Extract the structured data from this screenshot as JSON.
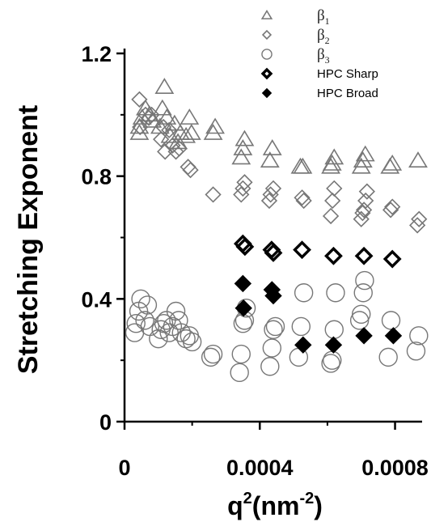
{
  "chart_data": {
    "type": "scatter",
    "xlabel": {
      "base": "q",
      "sup1": "2",
      "mid": "(nm",
      "sup2": "-2",
      "end": ")"
    },
    "ylabel": "Stretching Exponent",
    "xlim": [
      0,
      0.00088
    ],
    "ylim": [
      0,
      1.2
    ],
    "x_ticks": [
      0,
      0.0004,
      0.0008
    ],
    "x_tick_labels": [
      "0",
      "0.0004",
      "0.0008"
    ],
    "y_ticks": [
      0,
      0.4,
      0.8,
      1.2
    ],
    "y_tick_labels": [
      "0",
      "0.4",
      "0.8",
      "1.2"
    ],
    "grid": false,
    "legend_position": "top-right",
    "series": [
      {
        "name": "β1",
        "label_base": "β",
        "label_sub": "1",
        "marker": "triangle-open",
        "color": "#777777",
        "points": [
          [
            4.4e-05,
            0.94
          ],
          [
            4.4e-05,
            0.96
          ],
          [
            5.2e-05,
            0.99
          ],
          [
            6.2e-05,
            1.02
          ],
          [
            7.4e-05,
            1.0
          ],
          [
            8.2e-05,
            0.98
          ],
          [
            0.000105,
            0.96
          ],
          [
            0.000112,
            1.02
          ],
          [
            0.000118,
            1.09
          ],
          [
            0.000125,
            0.99
          ],
          [
            0.000135,
            0.93
          ],
          [
            0.000148,
            0.97
          ],
          [
            0.000158,
            0.91
          ],
          [
            0.000165,
            0.94
          ],
          [
            0.000182,
            0.93
          ],
          [
            0.000192,
            0.99
          ],
          [
            0.000198,
            0.94
          ],
          [
            0.000262,
            0.94
          ],
          [
            0.000268,
            0.96
          ],
          [
            0.000345,
            0.86
          ],
          [
            0.00035,
            0.89
          ],
          [
            0.000355,
            0.92
          ],
          [
            0.00043,
            0.85
          ],
          [
            0.000437,
            0.89
          ],
          [
            0.00052,
            0.83
          ],
          [
            0.000527,
            0.83
          ],
          [
            0.00061,
            0.83
          ],
          [
            0.000614,
            0.84
          ],
          [
            0.00062,
            0.86
          ],
          [
            0.0007,
            0.83
          ],
          [
            0.000705,
            0.85
          ],
          [
            0.000712,
            0.87
          ],
          [
            0.000785,
            0.83
          ],
          [
            0.000792,
            0.84
          ],
          [
            0.000868,
            0.85
          ]
        ]
      },
      {
        "name": "β2",
        "label_base": "β",
        "label_sub": "2",
        "marker": "diamond-open",
        "color": "#777777",
        "points": [
          [
            4.4e-05,
            1.05
          ],
          [
            4.6e-05,
            0.96
          ],
          [
            6.2e-05,
            1.0
          ],
          [
            7.2e-05,
            0.99
          ],
          [
            8e-05,
            1.0
          ],
          [
            0.000108,
            0.92
          ],
          [
            0.000115,
            0.96
          ],
          [
            0.00012,
            0.88
          ],
          [
            0.000132,
            0.95
          ],
          [
            0.000142,
            0.9
          ],
          [
            0.000152,
            0.88
          ],
          [
            0.000162,
            0.89
          ],
          [
            0.000188,
            0.83
          ],
          [
            0.000195,
            0.82
          ],
          [
            0.000262,
            0.74
          ],
          [
            0.000345,
            0.74
          ],
          [
            0.00035,
            0.76
          ],
          [
            0.000355,
            0.78
          ],
          [
            0.000428,
            0.72
          ],
          [
            0.000432,
            0.74
          ],
          [
            0.00044,
            0.76
          ],
          [
            0.000525,
            0.73
          ],
          [
            0.00053,
            0.72
          ],
          [
            0.00061,
            0.67
          ],
          [
            0.000615,
            0.72
          ],
          [
            0.00062,
            0.76
          ],
          [
            0.0007,
            0.66
          ],
          [
            0.000704,
            0.68
          ],
          [
            0.000708,
            0.69
          ],
          [
            0.000713,
            0.72
          ],
          [
            0.000717,
            0.75
          ],
          [
            0.000787,
            0.69
          ],
          [
            0.000792,
            0.7
          ],
          [
            0.000866,
            0.64
          ],
          [
            0.000871,
            0.66
          ]
        ]
      },
      {
        "name": "β3",
        "label_base": "β",
        "label_sub": "3",
        "marker": "circle-open",
        "color": "#777777",
        "points": [
          [
            3e-05,
            0.29
          ],
          [
            3.4e-05,
            0.32
          ],
          [
            4.2e-05,
            0.36
          ],
          [
            4.8e-05,
            0.4
          ],
          [
            6e-05,
            0.33
          ],
          [
            6.8e-05,
            0.38
          ],
          [
            7.5e-05,
            0.31
          ],
          [
            0.0001,
            0.27
          ],
          [
            0.000108,
            0.3
          ],
          [
            0.000116,
            0.32
          ],
          [
            0.000124,
            0.33
          ],
          [
            0.000132,
            0.29
          ],
          [
            0.000142,
            0.31
          ],
          [
            0.000152,
            0.36
          ],
          [
            0.00016,
            0.33
          ],
          [
            0.000168,
            0.29
          ],
          [
            0.000182,
            0.27
          ],
          [
            0.000192,
            0.28
          ],
          [
            0.0002,
            0.26
          ],
          [
            0.000255,
            0.21
          ],
          [
            0.000262,
            0.22
          ],
          [
            0.00034,
            0.16
          ],
          [
            0.000345,
            0.22
          ],
          [
            0.00035,
            0.32
          ],
          [
            0.000355,
            0.33
          ],
          [
            0.00036,
            0.37
          ],
          [
            0.00043,
            0.18
          ],
          [
            0.000436,
            0.24
          ],
          [
            0.00044,
            0.3
          ],
          [
            0.000446,
            0.31
          ],
          [
            0.000515,
            0.21
          ],
          [
            0.000522,
            0.31
          ],
          [
            0.00053,
            0.42
          ],
          [
            0.00061,
            0.19
          ],
          [
            0.000614,
            0.2
          ],
          [
            0.00062,
            0.3
          ],
          [
            0.000624,
            0.42
          ],
          [
            0.000695,
            0.33
          ],
          [
            0.0007,
            0.35
          ],
          [
            0.000706,
            0.42
          ],
          [
            0.00071,
            0.46
          ],
          [
            0.00078,
            0.21
          ],
          [
            0.000788,
            0.33
          ],
          [
            0.000862,
            0.23
          ],
          [
            0.00087,
            0.28
          ]
        ]
      },
      {
        "name": "HPC Sharp",
        "marker": "diamond-bold",
        "color": "#000000",
        "points": [
          [
            0.00035,
            0.58
          ],
          [
            0.000356,
            0.57
          ],
          [
            0.000435,
            0.56
          ],
          [
            0.00044,
            0.55
          ],
          [
            0.000525,
            0.56
          ],
          [
            0.000618,
            0.54
          ],
          [
            0.000708,
            0.54
          ],
          [
            0.000792,
            0.53
          ]
        ]
      },
      {
        "name": "HPC Broad",
        "marker": "diamond-filled",
        "color": "#000000",
        "points": [
          [
            0.00035,
            0.45
          ],
          [
            0.000352,
            0.37
          ],
          [
            0.000436,
            0.43
          ],
          [
            0.00044,
            0.41
          ],
          [
            0.000528,
            0.25
          ],
          [
            0.000618,
            0.25
          ],
          [
            0.000708,
            0.28
          ],
          [
            0.000795,
            0.28
          ]
        ]
      }
    ]
  }
}
